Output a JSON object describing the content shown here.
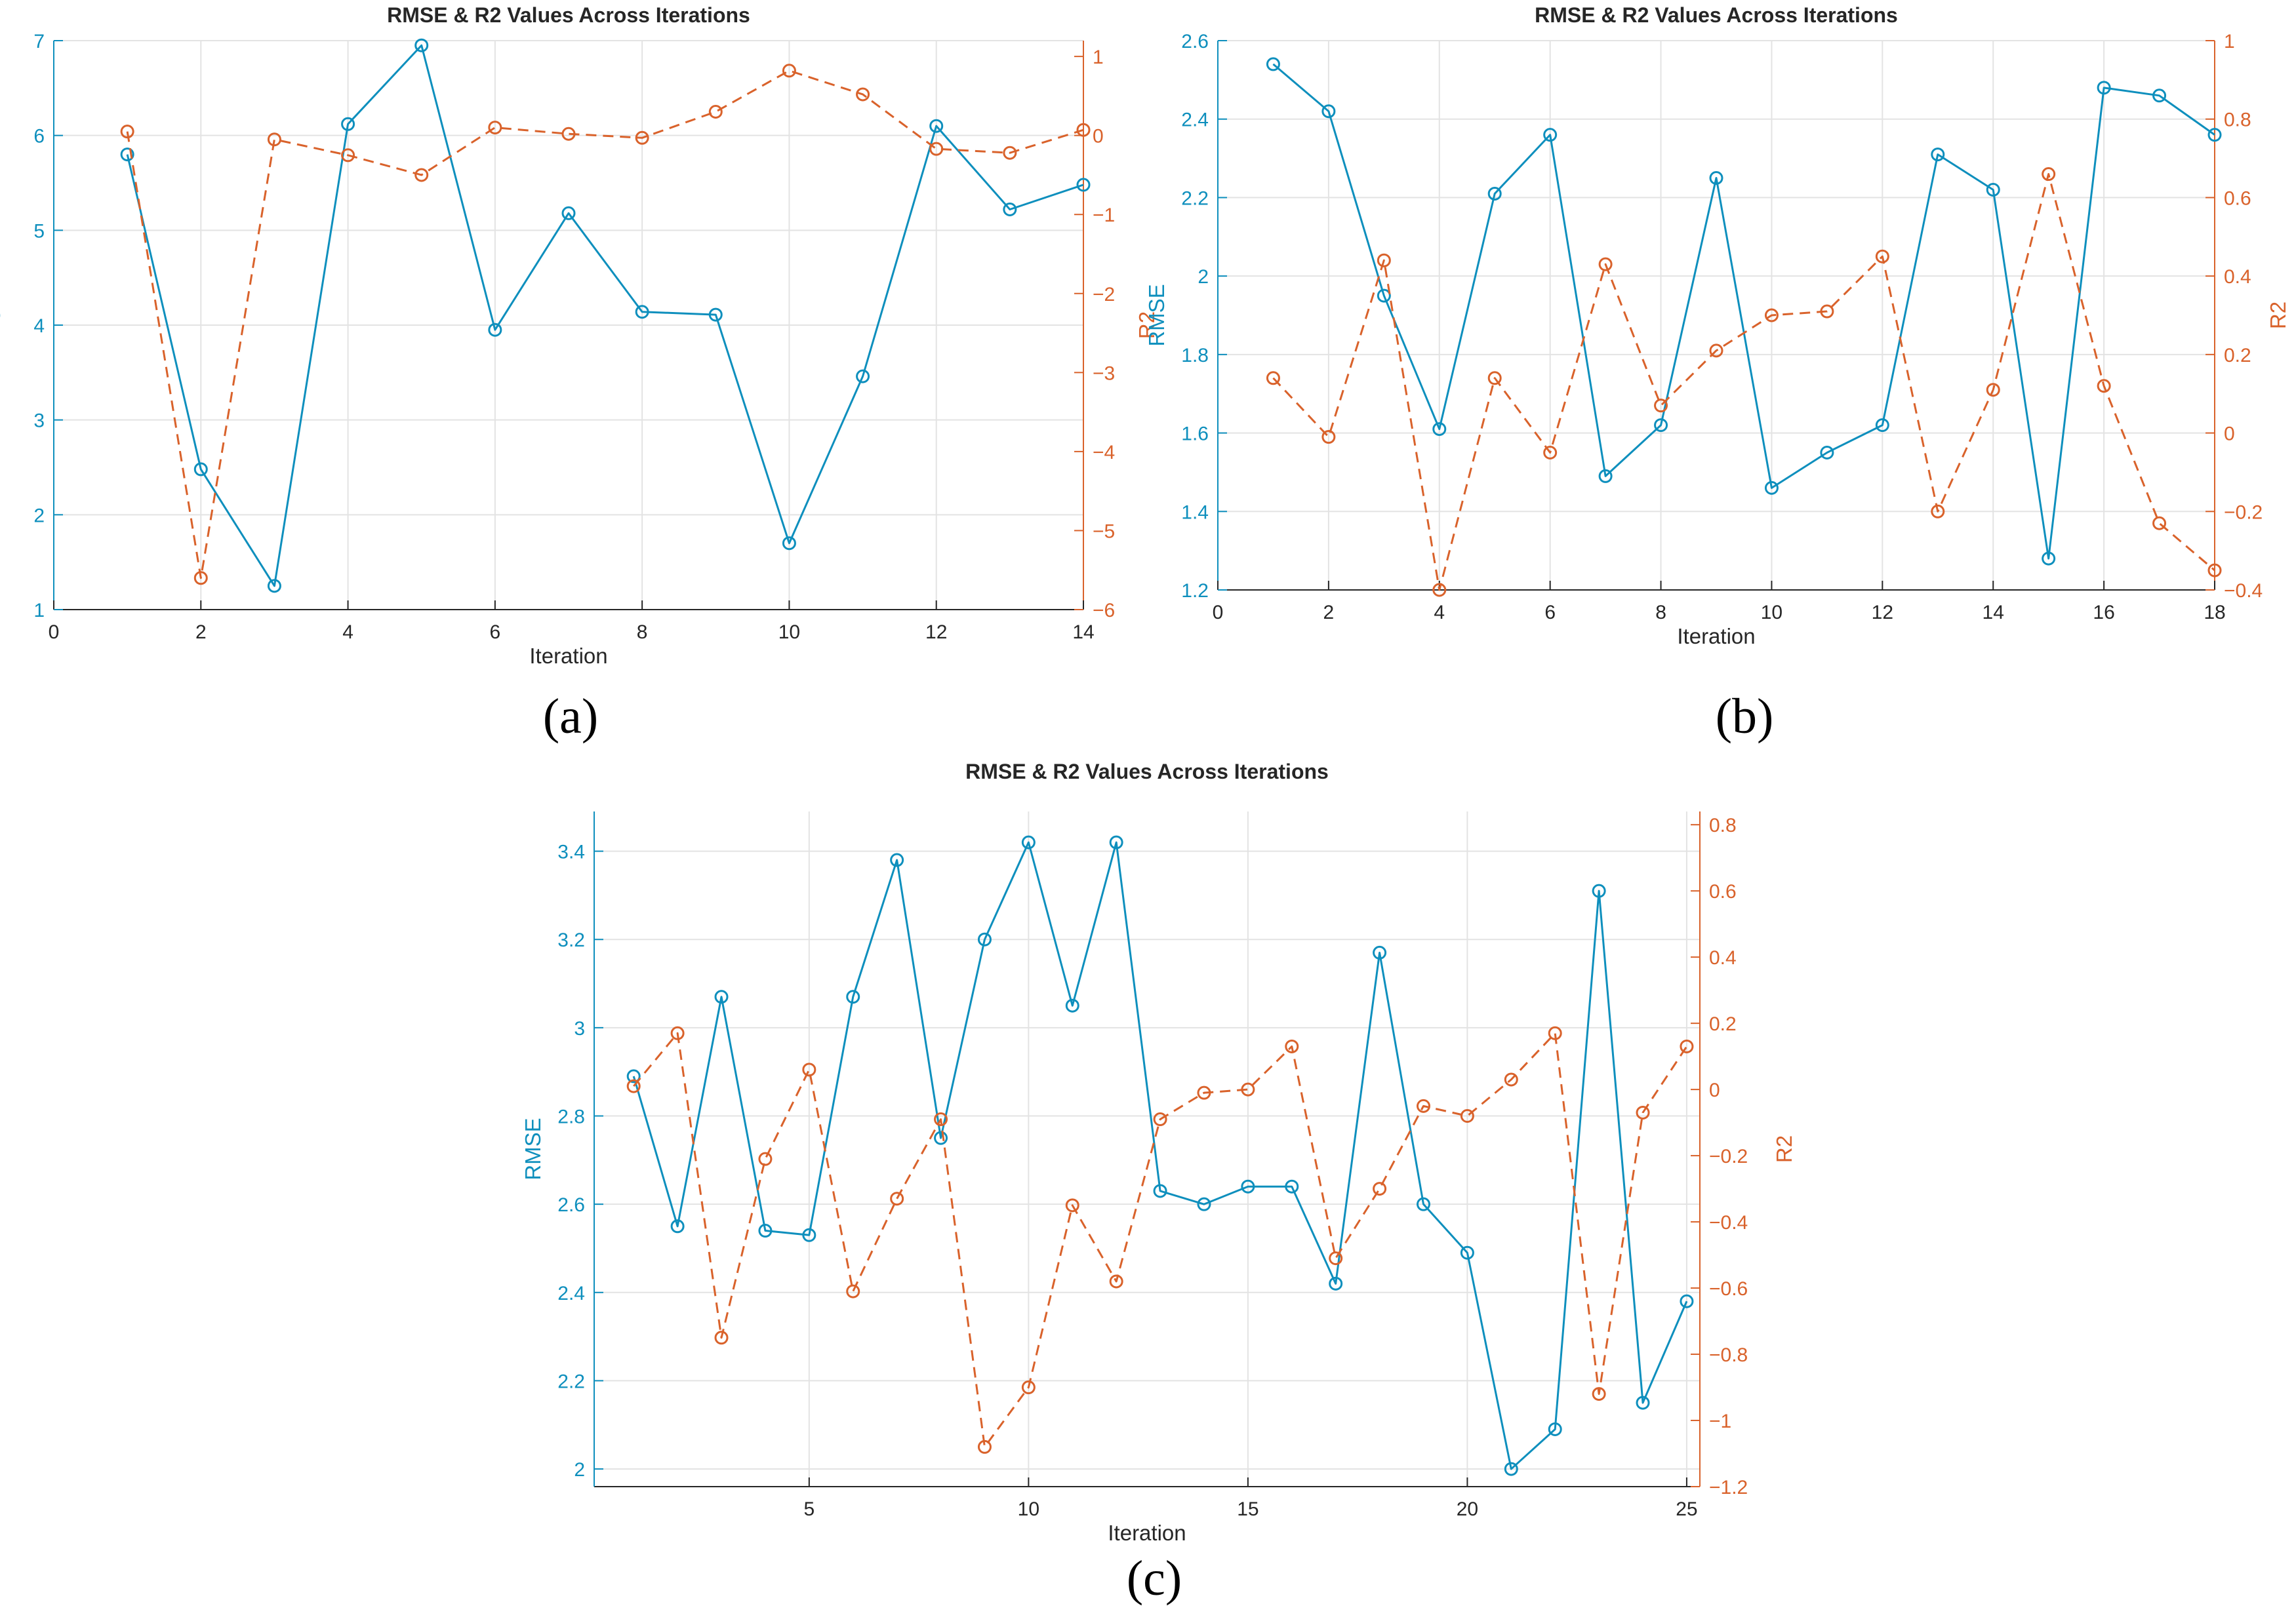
{
  "colors": {
    "rmse": "#0e8fbd",
    "r2": "#d9622b",
    "grid": "#e3e3e3",
    "axis": "#262626",
    "text": "#262626"
  },
  "panel_labels": [
    "(a)",
    "(b)",
    "(c)"
  ],
  "chart_data": [
    {
      "type": "line",
      "title": "RMSE & R2 Values Across Iterations",
      "xlabel": "Iteration",
      "ylabel_left": "RMSE",
      "ylabel_right": "R2",
      "xlim": [
        0,
        14
      ],
      "xticks": [
        0,
        2,
        4,
        6,
        8,
        10,
        12,
        14
      ],
      "ylim_left": [
        1,
        7
      ],
      "yticks_left": [
        1,
        2,
        3,
        4,
        5,
        6,
        7
      ],
      "ylim_right": [
        -6,
        1.2
      ],
      "yticks_right": [
        -6,
        -5,
        -4,
        -3,
        -2,
        -1,
        0,
        1
      ],
      "grid": true,
      "series": [
        {
          "name": "RMSE",
          "axis": "left",
          "style": "solid",
          "x": [
            1,
            2,
            3,
            4,
            5,
            6,
            7,
            8,
            9,
            10,
            11,
            12,
            13,
            14
          ],
          "values": [
            5.8,
            2.48,
            1.25,
            6.12,
            6.95,
            3.95,
            5.18,
            4.14,
            4.11,
            1.7,
            3.46,
            6.1,
            5.22,
            5.48
          ]
        },
        {
          "name": "R2",
          "axis": "right",
          "style": "dashed",
          "x": [
            1,
            2,
            3,
            4,
            5,
            6,
            7,
            8,
            9,
            10,
            11,
            12,
            13,
            14
          ],
          "values": [
            0.05,
            -5.6,
            -0.05,
            -0.25,
            -0.5,
            0.1,
            0.02,
            -0.03,
            0.3,
            0.82,
            0.52,
            -0.17,
            -0.22,
            0.07
          ]
        }
      ]
    },
    {
      "type": "line",
      "title": "RMSE & R2 Values Across Iterations",
      "xlabel": "Iteration",
      "ylabel_left": "RMSE",
      "ylabel_right": "R2",
      "xlim": [
        0,
        18
      ],
      "xticks": [
        0,
        2,
        4,
        6,
        8,
        10,
        12,
        14,
        16,
        18
      ],
      "ylim_left": [
        1.2,
        2.6
      ],
      "yticks_left": [
        1.2,
        1.4,
        1.6,
        1.8,
        2,
        2.2,
        2.4,
        2.6
      ],
      "ylim_right": [
        -0.4,
        1
      ],
      "yticks_right": [
        -0.4,
        -0.2,
        0,
        0.2,
        0.4,
        0.6,
        0.8,
        1
      ],
      "grid": true,
      "series": [
        {
          "name": "RMSE",
          "axis": "left",
          "style": "solid",
          "x": [
            1,
            2,
            3,
            4,
            5,
            6,
            7,
            8,
            9,
            10,
            11,
            12,
            13,
            14,
            15,
            16,
            17,
            18
          ],
          "values": [
            2.54,
            2.42,
            1.95,
            1.61,
            2.21,
            2.36,
            1.49,
            1.62,
            2.25,
            1.46,
            1.55,
            1.62,
            2.31,
            2.22,
            1.28,
            2.48,
            2.46,
            2.36
          ]
        },
        {
          "name": "R2",
          "axis": "right",
          "style": "dashed",
          "x": [
            1,
            2,
            3,
            4,
            5,
            6,
            7,
            8,
            9,
            10,
            11,
            12,
            13,
            14,
            15,
            16,
            17,
            18
          ],
          "values": [
            0.14,
            -0.01,
            0.44,
            -0.4,
            0.14,
            -0.05,
            0.43,
            0.07,
            0.21,
            0.3,
            0.31,
            0.45,
            -0.2,
            0.11,
            0.66,
            0.12,
            -0.23,
            -0.35
          ]
        }
      ]
    },
    {
      "type": "line",
      "title": "RMSE & R2 Values Across Iterations",
      "xlabel": "Iteration",
      "ylabel_left": "RMSE",
      "ylabel_right": "R2",
      "xlim": [
        0.1,
        25.3
      ],
      "xticks": [
        5,
        10,
        15,
        20,
        25
      ],
      "ylim_left": [
        1.96,
        3.49
      ],
      "yticks_left": [
        2,
        2.2,
        2.4,
        2.6,
        2.8,
        3,
        3.2,
        3.4
      ],
      "ylim_right": [
        -1.2,
        0.84
      ],
      "yticks_right": [
        -1.2,
        -1,
        -0.8,
        -0.6,
        -0.4,
        -0.2,
        0,
        0.2,
        0.4,
        0.6,
        0.8
      ],
      "grid": true,
      "series": [
        {
          "name": "RMSE",
          "axis": "left",
          "style": "solid",
          "x": [
            1,
            2,
            3,
            4,
            5,
            6,
            7,
            8,
            9,
            10,
            11,
            12,
            13,
            14,
            15,
            16,
            17,
            18,
            19,
            20,
            21,
            22,
            23,
            24,
            25
          ],
          "values": [
            2.89,
            2.55,
            3.07,
            2.54,
            2.53,
            3.07,
            3.38,
            2.75,
            3.2,
            3.42,
            3.05,
            3.42,
            2.63,
            2.6,
            2.64,
            2.64,
            2.42,
            3.17,
            2.6,
            2.49,
            2.0,
            2.09,
            3.31,
            2.15,
            2.38
          ]
        },
        {
          "name": "R2",
          "axis": "right",
          "style": "dashed",
          "x": [
            1,
            2,
            3,
            4,
            5,
            6,
            7,
            8,
            9,
            10,
            11,
            12,
            13,
            14,
            15,
            16,
            17,
            18,
            19,
            20,
            21,
            22,
            23,
            24,
            25
          ],
          "values": [
            0.01,
            0.17,
            -0.75,
            -0.21,
            0.06,
            -0.61,
            -0.33,
            -0.09,
            -1.08,
            -0.9,
            -0.35,
            -0.58,
            -0.09,
            -0.01,
            0.0,
            0.13,
            -0.51,
            -0.3,
            -0.05,
            -0.08,
            0.03,
            0.17,
            -0.92,
            -0.07,
            0.13
          ]
        }
      ]
    }
  ]
}
